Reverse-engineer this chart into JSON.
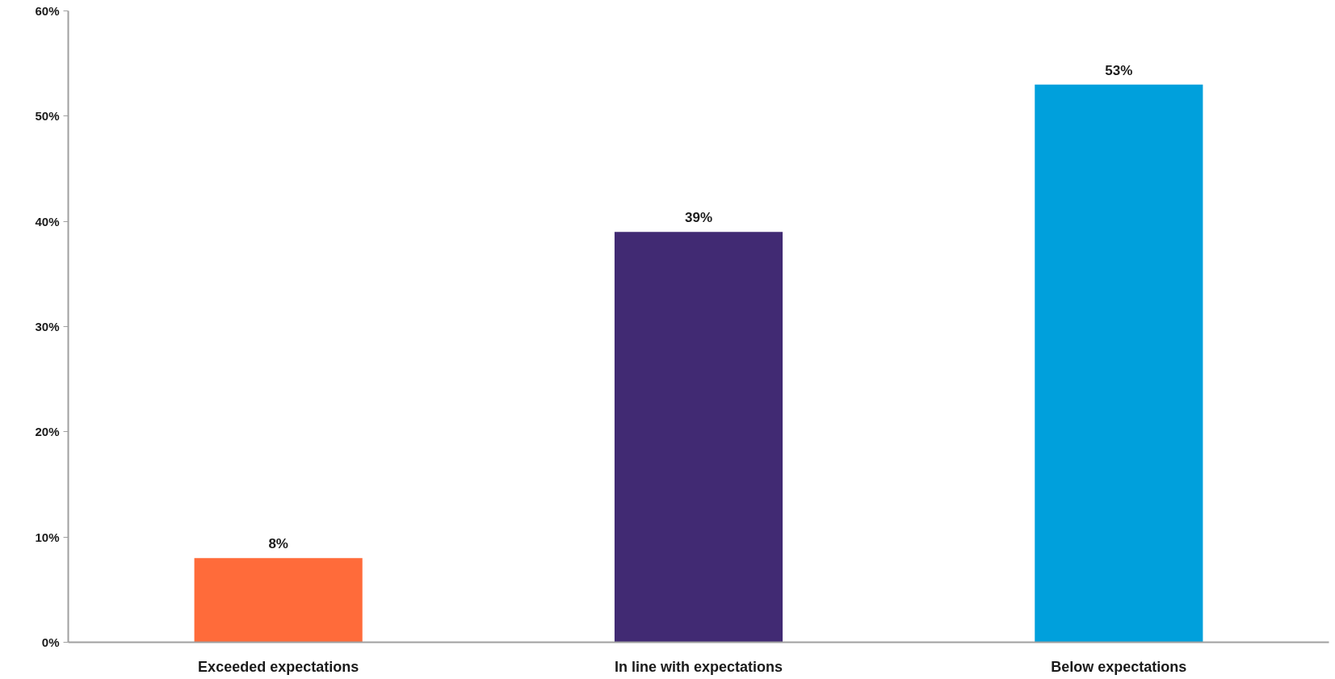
{
  "chart_data": {
    "type": "bar",
    "categories": [
      "Exceeded expectations",
      "In line with expectations",
      "Below expectations"
    ],
    "values": [
      8,
      39,
      53
    ],
    "colors": [
      "#ff6b3a",
      "#412a73",
      "#00a0dc"
    ],
    "ylim": [
      0,
      60
    ],
    "yticks": [
      {
        "value": 0,
        "label": "0%"
      },
      {
        "value": 10,
        "label": "10%"
      },
      {
        "value": 20,
        "label": "20%"
      },
      {
        "value": 30,
        "label": "30%"
      },
      {
        "value": 40,
        "label": "40%"
      },
      {
        "value": 50,
        "label": "50%"
      },
      {
        "value": 60,
        "label": "60%"
      }
    ],
    "value_labels": [
      "8%",
      "39%",
      "53%"
    ],
    "grid": false
  }
}
